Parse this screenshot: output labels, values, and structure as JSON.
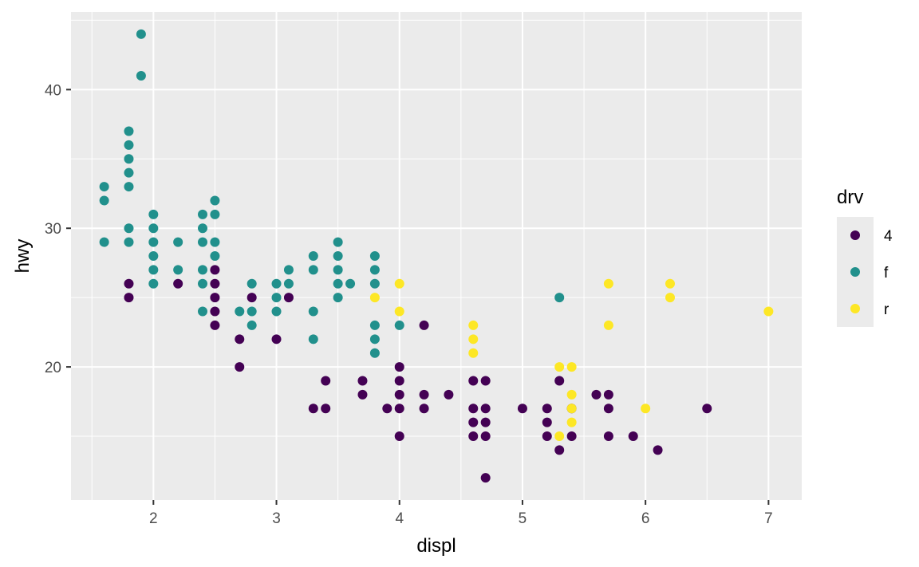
{
  "chart_data": {
    "type": "scatter",
    "xlabel": "displ",
    "ylabel": "hwy",
    "xlim": [
      1.33,
      7.27
    ],
    "ylim": [
      10.4,
      45.6
    ],
    "x_ticks": [
      2,
      3,
      4,
      5,
      6,
      7
    ],
    "y_ticks": [
      20,
      30,
      40
    ],
    "grid": true,
    "legend": {
      "title": "drv",
      "position": "right",
      "entries": [
        {
          "label": "4",
          "color": "#440154"
        },
        {
          "label": "f",
          "color": "#21908C"
        },
        {
          "label": "r",
          "color": "#FDE725"
        }
      ]
    },
    "series": [
      {
        "name": "4",
        "color": "#440154",
        "points": [
          [
            1.8,
            26
          ],
          [
            1.8,
            25
          ],
          [
            2.2,
            26
          ],
          [
            2.5,
            27
          ],
          [
            2.5,
            26
          ],
          [
            2.5,
            25
          ],
          [
            2.5,
            24
          ],
          [
            2.5,
            23
          ],
          [
            2.7,
            22
          ],
          [
            2.7,
            20
          ],
          [
            2.8,
            25
          ],
          [
            3.0,
            22
          ],
          [
            3.1,
            25
          ],
          [
            3.3,
            17
          ],
          [
            3.4,
            19
          ],
          [
            3.4,
            17
          ],
          [
            3.7,
            19
          ],
          [
            3.7,
            18
          ],
          [
            3.9,
            17
          ],
          [
            4.0,
            20
          ],
          [
            4.0,
            19
          ],
          [
            4.0,
            18
          ],
          [
            4.0,
            17
          ],
          [
            4.0,
            15
          ],
          [
            4.2,
            23
          ],
          [
            4.2,
            18
          ],
          [
            4.2,
            17
          ],
          [
            4.4,
            18
          ],
          [
            4.6,
            19
          ],
          [
            4.6,
            17
          ],
          [
            4.6,
            16
          ],
          [
            4.6,
            15
          ],
          [
            4.7,
            19
          ],
          [
            4.7,
            17
          ],
          [
            4.7,
            16
          ],
          [
            4.7,
            15
          ],
          [
            4.7,
            12
          ],
          [
            5.0,
            17
          ],
          [
            5.2,
            17
          ],
          [
            5.2,
            16
          ],
          [
            5.2,
            15
          ],
          [
            5.3,
            19
          ],
          [
            5.3,
            14
          ],
          [
            5.4,
            17
          ],
          [
            5.4,
            15
          ],
          [
            5.6,
            18
          ],
          [
            5.7,
            18
          ],
          [
            5.7,
            17
          ],
          [
            5.7,
            15
          ],
          [
            5.9,
            15
          ],
          [
            6.1,
            14
          ],
          [
            6.5,
            17
          ]
        ]
      },
      {
        "name": "f",
        "color": "#21908C",
        "points": [
          [
            1.6,
            33
          ],
          [
            1.6,
            32
          ],
          [
            1.6,
            29
          ],
          [
            1.8,
            37
          ],
          [
            1.8,
            36
          ],
          [
            1.8,
            35
          ],
          [
            1.8,
            34
          ],
          [
            1.8,
            33
          ],
          [
            1.8,
            30
          ],
          [
            1.8,
            29
          ],
          [
            1.9,
            44
          ],
          [
            1.9,
            41
          ],
          [
            2.0,
            31
          ],
          [
            2.0,
            30
          ],
          [
            2.0,
            29
          ],
          [
            2.0,
            28
          ],
          [
            2.0,
            27
          ],
          [
            2.0,
            26
          ],
          [
            2.2,
            29
          ],
          [
            2.2,
            27
          ],
          [
            2.4,
            31
          ],
          [
            2.4,
            30
          ],
          [
            2.4,
            29
          ],
          [
            2.4,
            27
          ],
          [
            2.4,
            26
          ],
          [
            2.4,
            24
          ],
          [
            2.5,
            32
          ],
          [
            2.5,
            31
          ],
          [
            2.5,
            29
          ],
          [
            2.5,
            28
          ],
          [
            2.7,
            24
          ],
          [
            2.8,
            26
          ],
          [
            2.8,
            24
          ],
          [
            2.8,
            23
          ],
          [
            3.0,
            26
          ],
          [
            3.0,
            25
          ],
          [
            3.0,
            24
          ],
          [
            3.1,
            27
          ],
          [
            3.1,
            26
          ],
          [
            3.3,
            28
          ],
          [
            3.3,
            27
          ],
          [
            3.3,
            24
          ],
          [
            3.3,
            22
          ],
          [
            3.5,
            29
          ],
          [
            3.5,
            28
          ],
          [
            3.5,
            27
          ],
          [
            3.5,
            26
          ],
          [
            3.5,
            25
          ],
          [
            3.6,
            26
          ],
          [
            3.8,
            28
          ],
          [
            3.8,
            27
          ],
          [
            3.8,
            26
          ],
          [
            3.8,
            23
          ],
          [
            3.8,
            22
          ],
          [
            3.8,
            21
          ],
          [
            4.0,
            23
          ],
          [
            5.3,
            25
          ]
        ]
      },
      {
        "name": "r",
        "color": "#FDE725",
        "points": [
          [
            3.8,
            25
          ],
          [
            4.0,
            26
          ],
          [
            4.0,
            24
          ],
          [
            4.6,
            23
          ],
          [
            4.6,
            22
          ],
          [
            4.6,
            21
          ],
          [
            5.3,
            20
          ],
          [
            5.3,
            15
          ],
          [
            5.4,
            20
          ],
          [
            5.4,
            18
          ],
          [
            5.4,
            17
          ],
          [
            5.4,
            16
          ],
          [
            5.7,
            26
          ],
          [
            5.7,
            23
          ],
          [
            6.0,
            17
          ],
          [
            6.2,
            26
          ],
          [
            6.2,
            25
          ],
          [
            7.0,
            24
          ]
        ]
      }
    ]
  }
}
